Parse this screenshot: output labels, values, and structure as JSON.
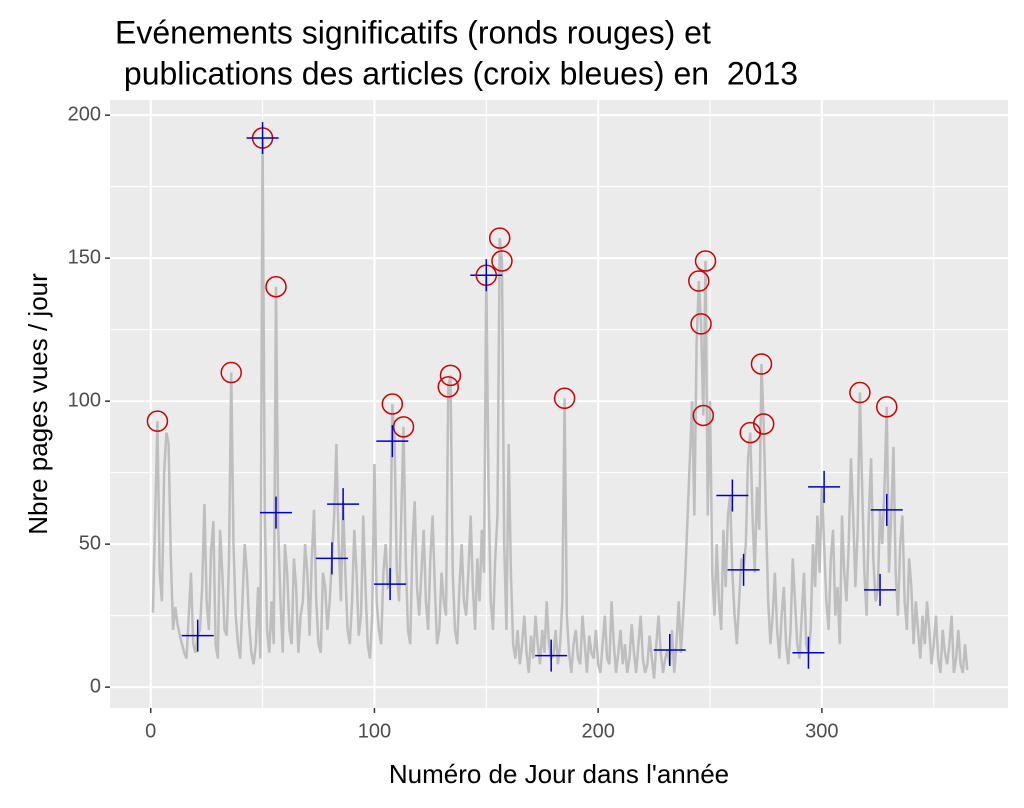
{
  "chart_data": {
    "type": "line",
    "title": [
      "Evénements significatifs (ronds rouges) et",
      " publications des articles (croix bleues) en  2013"
    ],
    "x_label": "Numéro de Jour dans l'année",
    "y_label": "Nbre pages vues / jour",
    "xlim": [
      -18.2,
      383.2
    ],
    "ylim": [
      -7.3,
      205.3
    ],
    "xticks": [
      0,
      100,
      200,
      300
    ],
    "yticks": [
      0,
      50,
      100,
      150,
      200
    ],
    "grid": true,
    "line": {
      "color": "#bebebe",
      "x": [
        1,
        2,
        3,
        4,
        5,
        6,
        7,
        8,
        9,
        10,
        11,
        12,
        13,
        14,
        15,
        16,
        17,
        18,
        19,
        20,
        21,
        22,
        23,
        24,
        25,
        26,
        27,
        28,
        29,
        30,
        31,
        32,
        33,
        34,
        35,
        36,
        37,
        38,
        39,
        40,
        41,
        42,
        43,
        44,
        45,
        46,
        47,
        48,
        49,
        50,
        51,
        52,
        53,
        54,
        55,
        56,
        57,
        58,
        59,
        60,
        61,
        62,
        63,
        64,
        65,
        66,
        67,
        68,
        69,
        70,
        71,
        72,
        73,
        74,
        75,
        76,
        77,
        78,
        79,
        80,
        81,
        82,
        83,
        84,
        85,
        86,
        87,
        88,
        89,
        90,
        91,
        92,
        93,
        94,
        95,
        96,
        97,
        98,
        99,
        100,
        101,
        102,
        103,
        104,
        105,
        106,
        107,
        108,
        109,
        110,
        111,
        112,
        113,
        114,
        115,
        116,
        117,
        118,
        119,
        120,
        121,
        122,
        123,
        124,
        125,
        126,
        127,
        128,
        129,
        130,
        131,
        132,
        133,
        134,
        135,
        136,
        137,
        138,
        139,
        140,
        141,
        142,
        143,
        144,
        145,
        146,
        147,
        148,
        149,
        150,
        151,
        152,
        153,
        154,
        155,
        156,
        157,
        158,
        159,
        160,
        161,
        162,
        163,
        164,
        165,
        166,
        167,
        168,
        169,
        170,
        171,
        172,
        173,
        174,
        175,
        176,
        177,
        178,
        179,
        180,
        181,
        182,
        183,
        184,
        185,
        186,
        187,
        188,
        189,
        190,
        191,
        192,
        193,
        194,
        195,
        196,
        197,
        198,
        199,
        200,
        201,
        202,
        203,
        204,
        205,
        206,
        207,
        208,
        209,
        210,
        211,
        212,
        213,
        214,
        215,
        216,
        217,
        218,
        219,
        220,
        221,
        222,
        223,
        224,
        225,
        226,
        227,
        228,
        229,
        230,
        231,
        232,
        233,
        234,
        235,
        236,
        237,
        238,
        239,
        240,
        241,
        242,
        243,
        244,
        245,
        246,
        247,
        248,
        249,
        250,
        251,
        252,
        253,
        254,
        255,
        256,
        257,
        258,
        259,
        260,
        261,
        262,
        263,
        264,
        265,
        266,
        267,
        268,
        269,
        270,
        271,
        272,
        273,
        274,
        275,
        276,
        277,
        278,
        279,
        280,
        281,
        282,
        283,
        284,
        285,
        286,
        287,
        288,
        289,
        290,
        291,
        292,
        293,
        294,
        295,
        296,
        297,
        298,
        299,
        300,
        301,
        302,
        303,
        304,
        305,
        306,
        307,
        308,
        309,
        310,
        311,
        312,
        313,
        314,
        315,
        316,
        317,
        318,
        319,
        320,
        321,
        322,
        323,
        324,
        325,
        326,
        327,
        328,
        329,
        330,
        331,
        332,
        333,
        334,
        335,
        336,
        337,
        338,
        339,
        340,
        341,
        342,
        343,
        344,
        345,
        346,
        347,
        348,
        349,
        350,
        351,
        352,
        353,
        354,
        355,
        356,
        357,
        358,
        359,
        360,
        361,
        362,
        363,
        364,
        365
      ],
      "values": [
        26,
        60,
        93,
        40,
        30,
        75,
        89,
        85,
        45,
        20,
        28,
        22,
        18,
        15,
        12,
        10,
        25,
        40,
        15,
        12,
        18,
        20,
        35,
        64,
        30,
        20,
        48,
        58,
        15,
        10,
        55,
        40,
        20,
        18,
        45,
        110,
        50,
        25,
        15,
        10,
        30,
        50,
        40,
        22,
        12,
        8,
        15,
        35,
        10,
        192,
        60,
        20,
        12,
        30,
        15,
        140,
        55,
        30,
        12,
        50,
        40,
        20,
        15,
        45,
        35,
        12,
        25,
        30,
        50,
        40,
        18,
        45,
        62,
        30,
        15,
        12,
        40,
        35,
        20,
        30,
        45,
        60,
        85,
        50,
        30,
        65,
        40,
        20,
        15,
        30,
        55,
        40,
        18,
        25,
        60,
        35,
        15,
        10,
        25,
        78,
        30,
        20,
        15,
        40,
        50,
        35,
        36,
        99,
        86,
        40,
        30,
        60,
        91,
        45,
        20,
        15,
        50,
        65,
        35,
        25,
        40,
        55,
        30,
        20,
        45,
        60,
        35,
        15,
        20,
        40,
        30,
        25,
        105,
        109,
        40,
        20,
        15,
        35,
        50,
        30,
        25,
        40,
        60,
        35,
        20,
        45,
        30,
        55,
        40,
        144,
        70,
        30,
        20,
        45,
        60,
        157,
        149,
        50,
        20,
        85,
        40,
        15,
        10,
        20,
        8,
        15,
        25,
        12,
        5,
        18,
        10,
        25,
        15,
        8,
        20,
        12,
        30,
        15,
        10,
        11,
        20,
        8,
        15,
        30,
        101,
        25,
        12,
        5,
        15,
        20,
        10,
        8,
        25,
        15,
        5,
        18,
        12,
        10,
        20,
        8,
        5,
        15,
        25,
        10,
        8,
        30,
        15,
        5,
        12,
        20,
        8,
        15,
        5,
        10,
        22,
        12,
        5,
        15,
        25,
        10,
        5,
        8,
        18,
        10,
        3,
        15,
        25,
        12,
        5,
        10,
        13,
        8,
        20,
        5,
        15,
        30,
        12,
        25,
        40,
        60,
        80,
        100,
        60,
        120,
        142,
        127,
        95,
        149,
        60,
        100,
        40,
        25,
        50,
        30,
        20,
        55,
        35,
        60,
        67,
        40,
        25,
        15,
        30,
        45,
        41,
        50,
        80,
        89,
        60,
        40,
        70,
        55,
        113,
        92,
        60,
        30,
        15,
        25,
        40,
        20,
        10,
        25,
        35,
        15,
        8,
        20,
        45,
        30,
        15,
        10,
        25,
        40,
        15,
        12,
        20,
        50,
        35,
        60,
        40,
        70,
        50,
        30,
        20,
        45,
        55,
        25,
        35,
        15,
        60,
        40,
        30,
        50,
        80,
        60,
        35,
        55,
        103,
        70,
        40,
        25,
        60,
        80,
        45,
        30,
        34,
        62,
        50,
        70,
        98,
        40,
        60,
        84,
        40,
        25,
        50,
        60,
        30,
        20,
        45,
        35,
        15,
        30,
        20,
        10,
        25,
        15,
        30,
        20,
        8,
        15,
        25,
        10,
        5,
        20,
        12,
        8,
        15,
        25,
        5,
        10,
        20,
        8,
        5,
        15,
        6
      ]
    },
    "events": {
      "color": "#cc0000",
      "x": [
        3,
        36,
        50,
        56,
        108,
        113,
        133,
        134,
        150,
        156,
        157,
        185,
        245,
        246,
        247,
        248,
        268,
        273,
        274,
        317,
        329
      ],
      "values": [
        93,
        110,
        192,
        140,
        99,
        91,
        105,
        109,
        144,
        157,
        149,
        101,
        142,
        127,
        95,
        149,
        89,
        113,
        92,
        103,
        98
      ]
    },
    "publications": {
      "color": "#0000cc",
      "x": [
        21,
        50,
        56,
        81,
        86,
        107,
        108,
        150,
        179,
        232,
        260,
        265,
        301,
        294,
        326,
        329
      ],
      "values": [
        18,
        192,
        61,
        45,
        64,
        36,
        86,
        144,
        11,
        13,
        67,
        41,
        70,
        12,
        34,
        62
      ]
    }
  }
}
